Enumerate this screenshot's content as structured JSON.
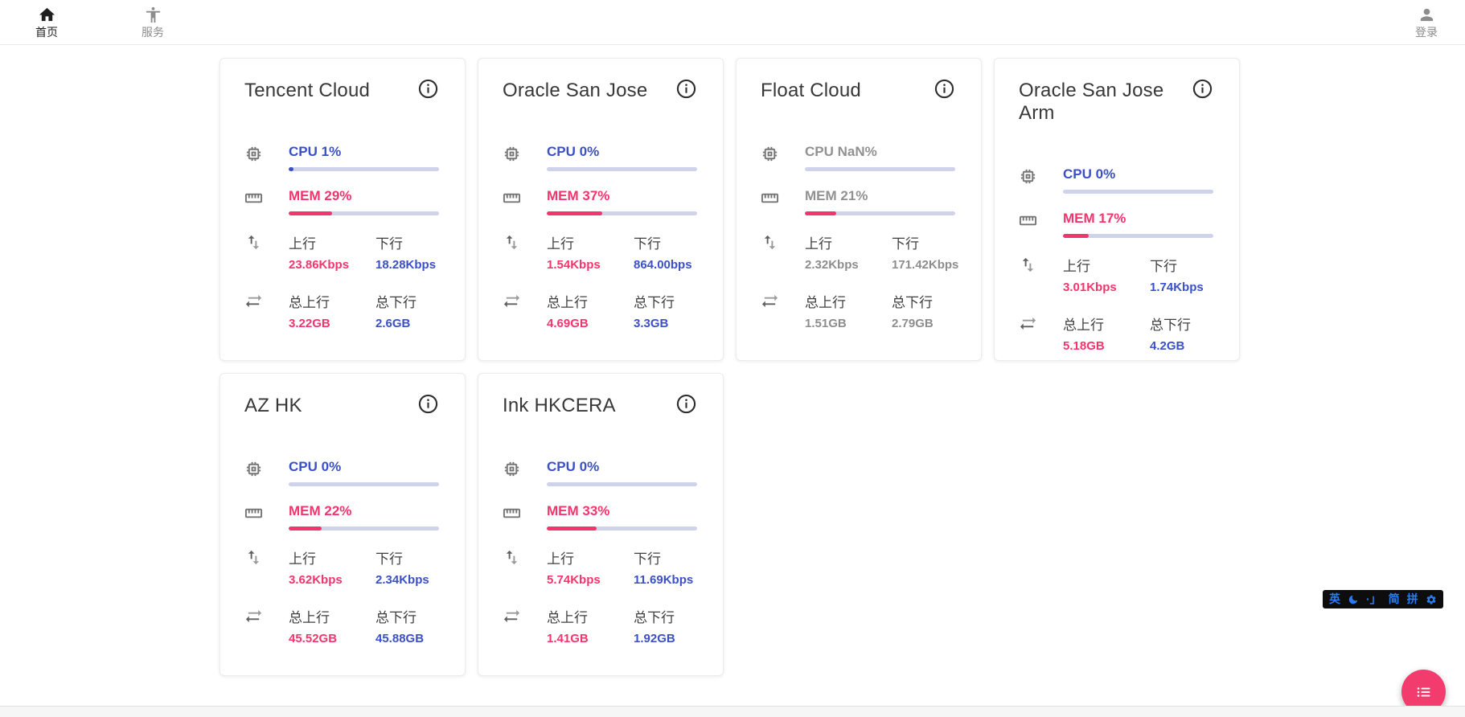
{
  "nav": {
    "home": {
      "label": "首页"
    },
    "services": {
      "label": "服务"
    },
    "login": {
      "label": "登录"
    }
  },
  "labels": {
    "up": "上行",
    "down": "下行",
    "total_up": "总上行",
    "total_down": "总下行"
  },
  "cards": [
    {
      "name": "Tencent Cloud",
      "cpu_text": "CPU 1%",
      "cpu_pct": 1,
      "mem_text": "MEM 29%",
      "mem_pct": 29,
      "up_value": "23.86Kbps",
      "down_value": "18.28Kbps",
      "total_up_value": "3.22GB",
      "total_down_value": "2.6GB",
      "offline": false
    },
    {
      "name": "Oracle San Jose",
      "cpu_text": "CPU 0%",
      "cpu_pct": 0,
      "mem_text": "MEM 37%",
      "mem_pct": 37,
      "up_value": "1.54Kbps",
      "down_value": "864.00bps",
      "total_up_value": "4.69GB",
      "total_down_value": "3.3GB",
      "offline": false
    },
    {
      "name": "Float Cloud",
      "cpu_text": "CPU NaN%",
      "cpu_pct": 0,
      "mem_text": "MEM 21%",
      "mem_pct": 21,
      "up_value": "2.32Kbps",
      "down_value": "171.42Kbps",
      "total_up_value": "1.51GB",
      "total_down_value": "2.79GB",
      "offline": true
    },
    {
      "name": "Oracle San Jose Arm",
      "cpu_text": "CPU 0%",
      "cpu_pct": 0,
      "mem_text": "MEM 17%",
      "mem_pct": 17,
      "up_value": "3.01Kbps",
      "down_value": "1.74Kbps",
      "total_up_value": "5.18GB",
      "total_down_value": "4.2GB",
      "offline": false
    },
    {
      "name": "AZ HK",
      "cpu_text": "CPU 0%",
      "cpu_pct": 0,
      "mem_text": "MEM 22%",
      "mem_pct": 22,
      "up_value": "3.62Kbps",
      "down_value": "2.34Kbps",
      "total_up_value": "45.52GB",
      "total_down_value": "45.88GB",
      "offline": false
    },
    {
      "name": "Ink HKCERA",
      "cpu_text": "CPU 0%",
      "cpu_pct": 0,
      "mem_text": "MEM 33%",
      "mem_pct": 33,
      "up_value": "5.74Kbps",
      "down_value": "11.69Kbps",
      "total_up_value": "1.41GB",
      "total_down_value": "1.92GB",
      "offline": false
    }
  ],
  "ime": {
    "lang": "英",
    "punct": "·」",
    "simplified": "简",
    "pinyin": "拼"
  },
  "icons": {
    "nav": [
      "home-icon",
      "accessibility-icon",
      "person-icon"
    ],
    "card": [
      "info-icon",
      "cpu-chip-icon",
      "memory-ruler-icon",
      "swap-vertical-icon",
      "swap-horizontal-icon"
    ],
    "ime": [
      "moon-icon",
      "gear-icon"
    ],
    "fab": "list-icon"
  },
  "colors": {
    "accent_blue": "#3b50c6",
    "accent_pink": "#f2356d",
    "bar_track": "#ced3ea",
    "fab_pink": "#f23c6e",
    "ime_blue": "#2b7cf0",
    "ime_bg": "#0d0d0d"
  }
}
